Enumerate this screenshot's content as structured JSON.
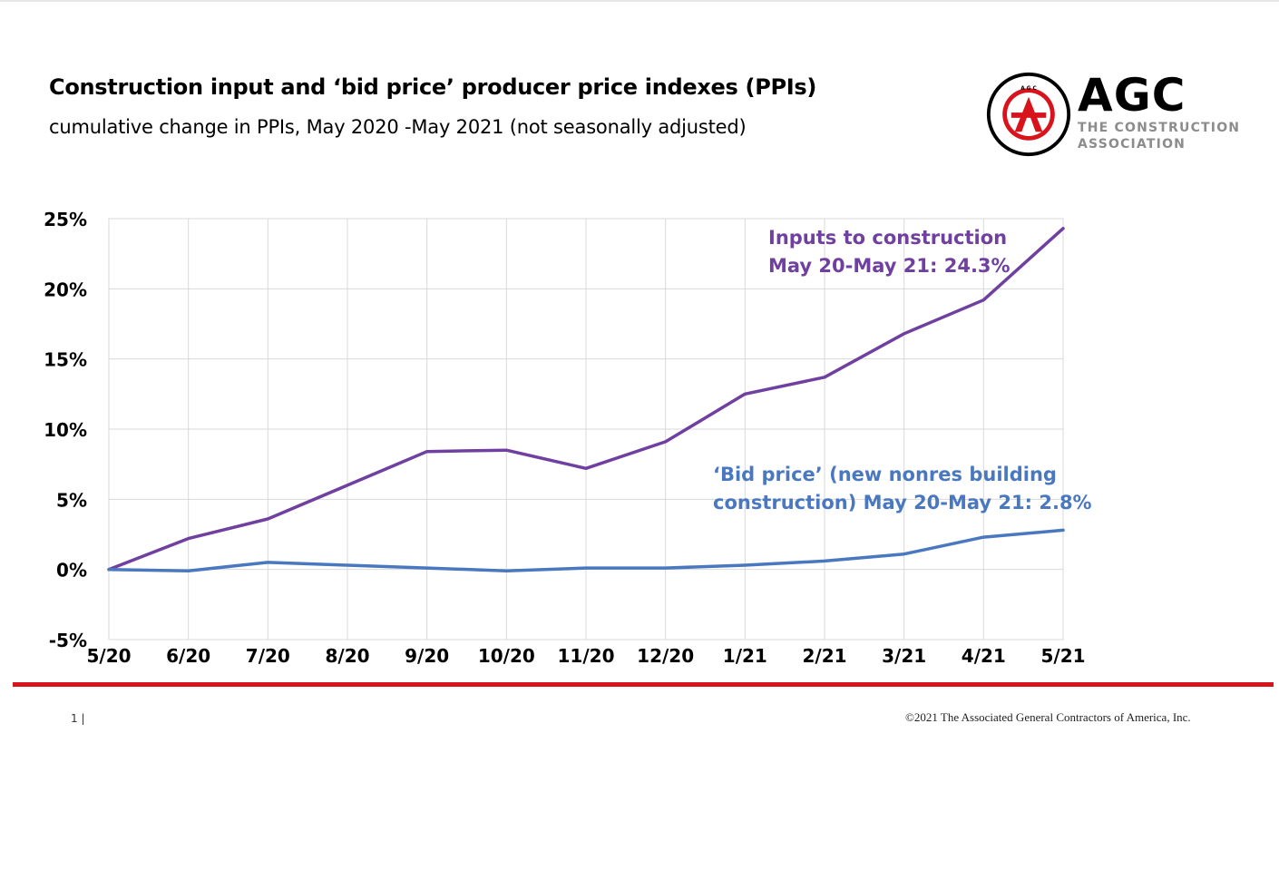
{
  "page": {
    "title": "Construction input and ‘bid price’ producer price indexes (PPIs)",
    "subtitle": "cumulative change in PPIs, May 2020 -May 2021 (not seasonally adjusted)",
    "logo": {
      "wordmark": "AGC",
      "tagline_line1": "THE CONSTRUCTION",
      "tagline_line2": "ASSOCIATION",
      "seal_text": "ASSOCIATED GENERAL CONTRACTORS OF AMERICA",
      "seal_letters": [
        "A",
        "G",
        "C"
      ],
      "colors": {
        "seal_ring": "#d9131b",
        "seal_center": "#d9131b",
        "wordmark": "#000000",
        "tagline": "#8c8c8c"
      }
    },
    "footer": {
      "page_number": "1 |",
      "copyright": "©2021 The Associated General Contractors of America, Inc.",
      "rule_color": "#d9131b"
    }
  },
  "chart_data": {
    "type": "line",
    "categories": [
      "5/20",
      "6/20",
      "7/20",
      "8/20",
      "9/20",
      "10/20",
      "11/20",
      "12/20",
      "1/21",
      "2/21",
      "3/21",
      "4/21",
      "5/21"
    ],
    "ylim": [
      -5,
      25
    ],
    "yticks": [
      -5,
      0,
      5,
      10,
      15,
      20,
      25
    ],
    "ytick_labels": [
      "-5%",
      "0%",
      "5%",
      "10%",
      "15%",
      "20%",
      "25%"
    ],
    "grid": true,
    "series": [
      {
        "values": [
          0,
          2.2,
          3.6,
          6.0,
          8.4,
          8.5,
          7.2,
          9.1,
          12.5,
          13.7,
          16.8,
          19.2,
          24.3
        ],
        "color": "#7040a0"
      },
      {
        "values": [
          0,
          -0.1,
          0.5,
          0.3,
          0.1,
          -0.1,
          0.1,
          0.1,
          0.3,
          0.6,
          1.1,
          2.3,
          2.8
        ],
        "color": "#4a78c0"
      }
    ],
    "annotations": [
      {
        "lines": [
          "Inputs to construction",
          "May 20-May 21: 24.3%"
        ],
        "color": "#7040a0"
      },
      {
        "lines": [
          "‘Bid price’ (new nonres building",
          "construction) May 20-May 21: 2.8%"
        ],
        "color": "#4a78c0"
      }
    ]
  }
}
